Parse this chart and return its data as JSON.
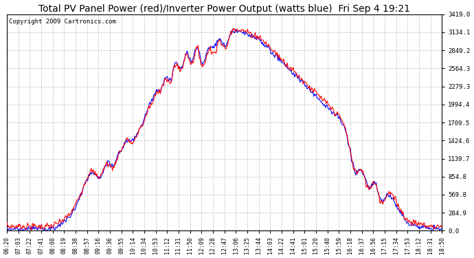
{
  "title": "Total PV Panel Power (red)/Inverter Power Output (watts blue)  Fri Sep 4 19:21",
  "copyright": "Copyright 2009 Cartronics.com",
  "yticks": [
    0.0,
    284.9,
    569.8,
    854.8,
    1139.7,
    1424.6,
    1709.5,
    1994.4,
    2279.3,
    2564.3,
    2849.2,
    3134.1,
    3419.0
  ],
  "ytick_labels": [
    "0.0",
    "284.9",
    "569.8",
    "854.8",
    "1139.7",
    "1424.6",
    "1709.5",
    "1994.4",
    "2279.3",
    "2564.3",
    "2849.2",
    "3134.1",
    "3419.0"
  ],
  "ymax": 3419.0,
  "ymin": 0.0,
  "xtick_labels": [
    "06:20",
    "07:03",
    "07:22",
    "07:41",
    "08:00",
    "08:19",
    "08:38",
    "08:57",
    "09:16",
    "09:36",
    "09:55",
    "10:14",
    "10:34",
    "10:53",
    "11:12",
    "11:31",
    "11:50",
    "12:09",
    "12:28",
    "12:47",
    "13:06",
    "13:25",
    "13:44",
    "14:03",
    "14:22",
    "14:41",
    "15:01",
    "15:20",
    "15:40",
    "15:59",
    "16:18",
    "16:37",
    "16:56",
    "17:15",
    "17:34",
    "17:53",
    "18:12",
    "18:31",
    "18:50"
  ],
  "red_color": "#ff0000",
  "blue_color": "#0000ff",
  "bg_color": "#ffffff",
  "title_fontsize": 10,
  "copyright_fontsize": 6.5,
  "grid_color": "#bbbbbb",
  "grid_style": "--",
  "linewidth": 0.8
}
